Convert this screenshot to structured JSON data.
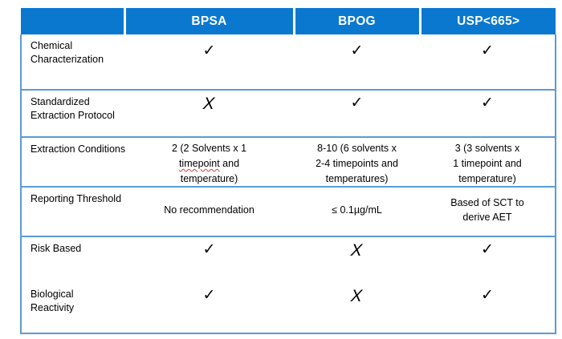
{
  "colors": {
    "header_bg": "#0b78cf",
    "header_text": "#ffffff",
    "grid_line": "#5b9bd5",
    "body_text": "#000000",
    "spellcheck_underline": "#e03a2f"
  },
  "table": {
    "header": {
      "columns": [
        "BPSA",
        "BPOG",
        "USP<665>"
      ]
    },
    "marks_legend": {
      "check": "✓",
      "cross": "X"
    },
    "rows": [
      {
        "label_lines": [
          "Chemical",
          "Characterization"
        ],
        "cells": [
          {
            "mark": "✓",
            "kind": "check"
          },
          {
            "mark": "✓",
            "kind": "check"
          },
          {
            "mark": "✓",
            "kind": "check"
          }
        ]
      },
      {
        "label_lines": [
          "Standardized",
          "Extraction Protocol"
        ],
        "cells": [
          {
            "mark": "X",
            "kind": "cross"
          },
          {
            "mark": "✓",
            "kind": "check"
          },
          {
            "mark": "✓",
            "kind": "check"
          }
        ]
      },
      {
        "label_lines": [
          "Extraction Conditions"
        ],
        "cells": [
          {
            "line1": "2 (2 Solvents x 1",
            "misspelled_word": "timepoint",
            "line2_rest": " and",
            "line3": "temperature)"
          },
          {
            "lines": [
              "8-10 (6 solvents x",
              "2-4 timepoints and",
              "temperatures)"
            ]
          },
          {
            "lines": [
              "3 (3 solvents x",
              "1 timepoint and",
              "temperature)"
            ]
          }
        ]
      },
      {
        "label_lines": [
          "Reporting Threshold"
        ],
        "cells": [
          {
            "lines": [
              "No recommendation"
            ]
          },
          {
            "lines": [
              "≤ 0.1µg/mL"
            ]
          },
          {
            "lines": [
              "Based of SCT to",
              "derive AET"
            ]
          }
        ]
      },
      {
        "label_lines": [
          "Risk Based"
        ],
        "cells": [
          {
            "mark": "✓",
            "kind": "check"
          },
          {
            "mark": "X",
            "kind": "cross"
          },
          {
            "mark": "✓",
            "kind": "check"
          }
        ]
      },
      {
        "label_lines": [
          "Biological",
          "Reactivity"
        ],
        "cells": [
          {
            "mark": "✓",
            "kind": "check"
          },
          {
            "mark": "X",
            "kind": "cross"
          },
          {
            "mark": "✓",
            "kind": "check"
          }
        ]
      }
    ]
  }
}
